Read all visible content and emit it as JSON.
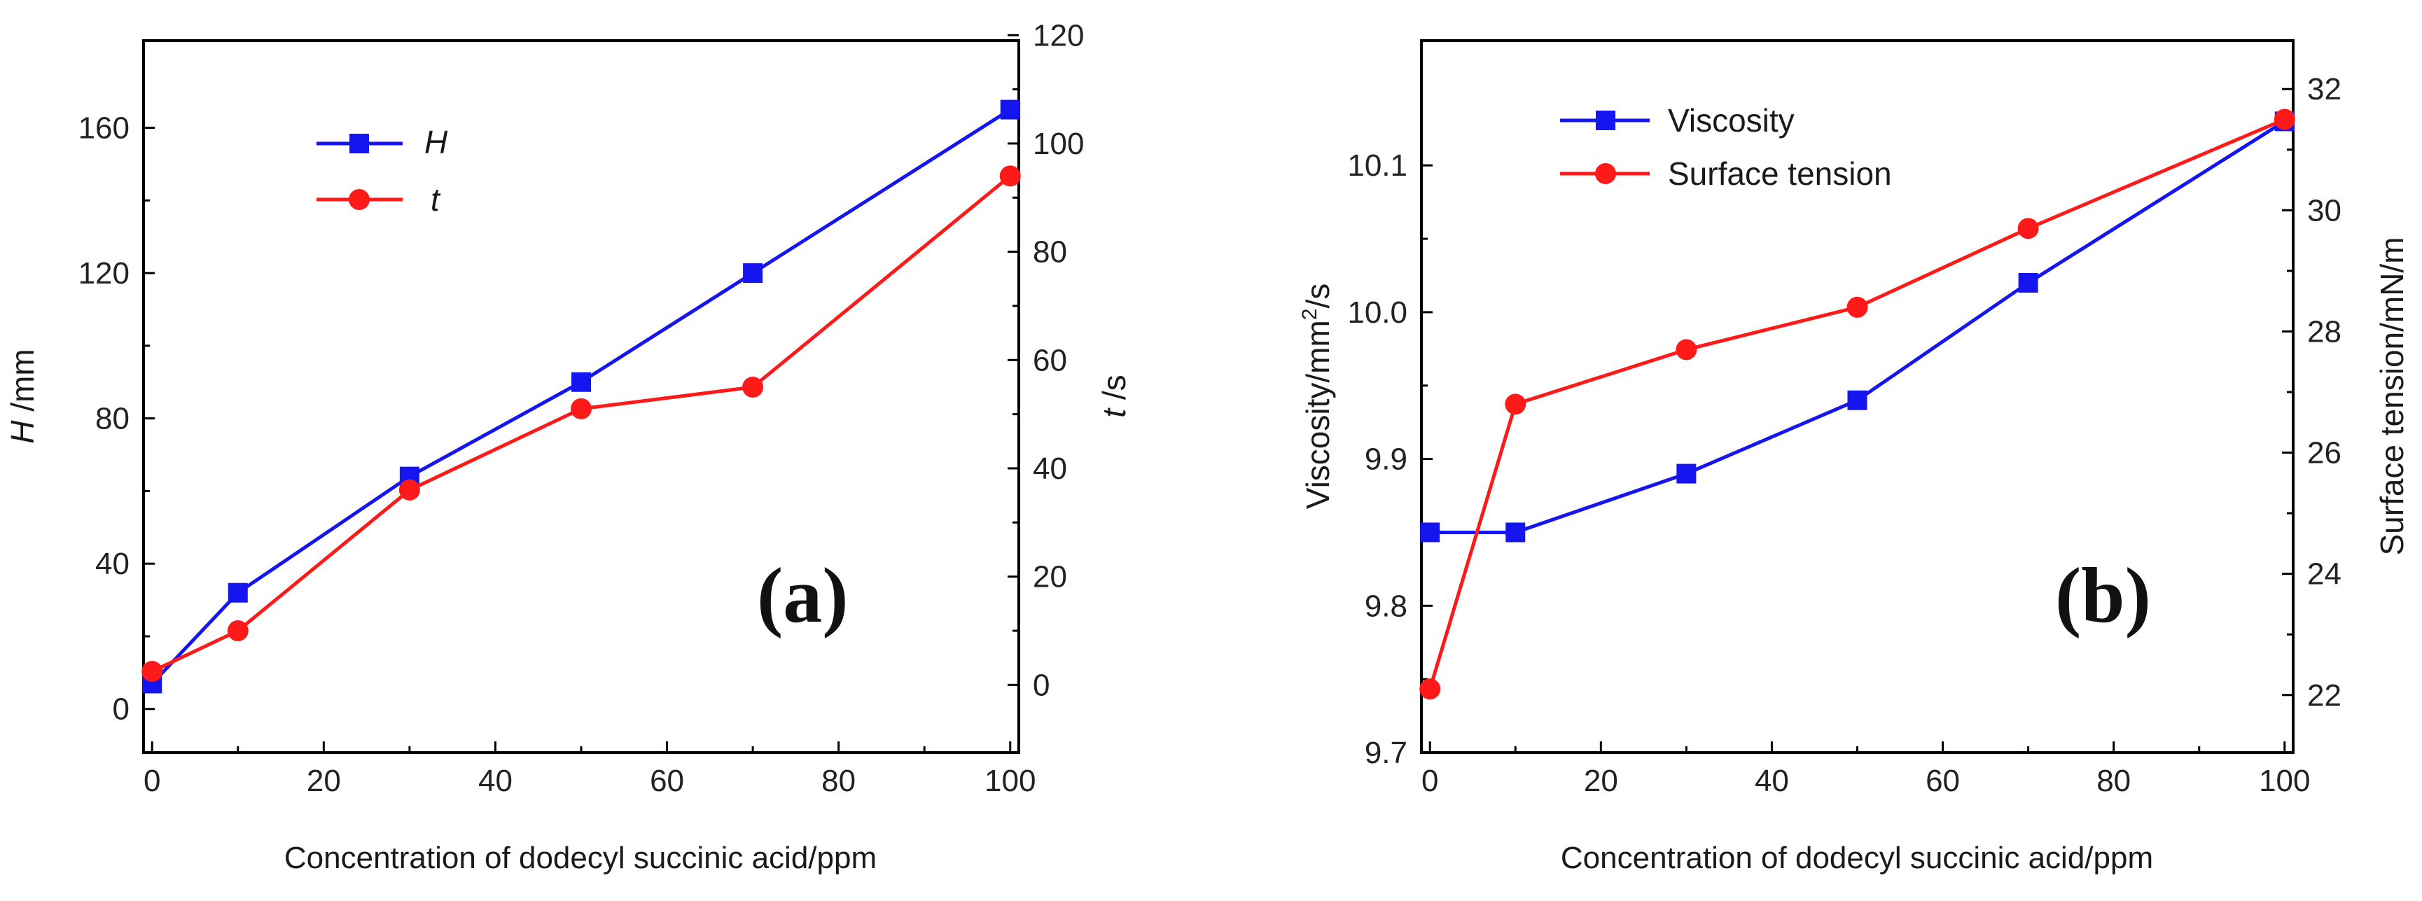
{
  "colors": {
    "blue": "#1515f0",
    "red": "#ff1a1a",
    "axis": "#000000",
    "text": "#222222"
  },
  "chart_data": [
    {
      "type": "line",
      "panel_label": "(a)",
      "x": [
        0,
        10,
        30,
        50,
        70,
        100
      ],
      "xlim": [
        -1,
        101
      ],
      "xticks": [
        0,
        20,
        40,
        60,
        80,
        100
      ],
      "xlabel": "Concentration of dodecyl succinic acid/ppm",
      "left_axis": {
        "label_var": "H",
        "label_unit": " /mm",
        "ylim": [
          -12,
          184
        ],
        "ticks": [
          0,
          40,
          80,
          120,
          160
        ]
      },
      "right_axis": {
        "label_var": "t",
        "label_unit": " /s",
        "ylim": [
          -12.5,
          119
        ],
        "ticks": [
          0,
          20,
          40,
          60,
          80,
          100,
          120
        ]
      },
      "legend_position": "top-left",
      "series": [
        {
          "name": "H",
          "axis": "left",
          "color": "#1515f0",
          "marker": "square",
          "values": [
            7,
            32,
            64,
            90,
            120,
            165
          ]
        },
        {
          "name": "t",
          "axis": "right",
          "color": "#ff1a1a",
          "marker": "circle",
          "values": [
            2.5,
            10,
            36,
            51,
            55,
            94
          ]
        }
      ]
    },
    {
      "type": "line",
      "panel_label": "(b)",
      "x": [
        0,
        10,
        30,
        50,
        70,
        100
      ],
      "xlim": [
        -1,
        101
      ],
      "xticks": [
        0,
        20,
        40,
        60,
        80,
        100
      ],
      "xlabel": "Concentration of dodecyl succinic acid/ppm",
      "left_axis": {
        "label_main": "Viscosity/mm",
        "label_sup": "2",
        "label_tail": "/s",
        "ylim": [
          9.7,
          10.185
        ],
        "ticks": [
          9.7,
          9.8,
          9.9,
          10.0,
          10.1
        ],
        "tick_labels": [
          "9.7",
          "9.8",
          "9.9",
          "10.0",
          "10.1"
        ]
      },
      "right_axis": {
        "label": "Surface tension/mN/m",
        "ylim": [
          21.05,
          32.8
        ],
        "ticks": [
          22,
          24,
          26,
          28,
          30,
          32
        ]
      },
      "legend_position": "top-left",
      "series": [
        {
          "name": "Viscosity",
          "axis": "left",
          "color": "#1515f0",
          "marker": "square",
          "values": [
            9.85,
            9.85,
            9.89,
            9.94,
            10.02,
            10.13
          ]
        },
        {
          "name": "Surface tension",
          "axis": "right",
          "color": "#ff1a1a",
          "marker": "circle",
          "values": [
            22.1,
            26.8,
            27.7,
            28.4,
            29.7,
            31.5
          ]
        }
      ]
    }
  ]
}
